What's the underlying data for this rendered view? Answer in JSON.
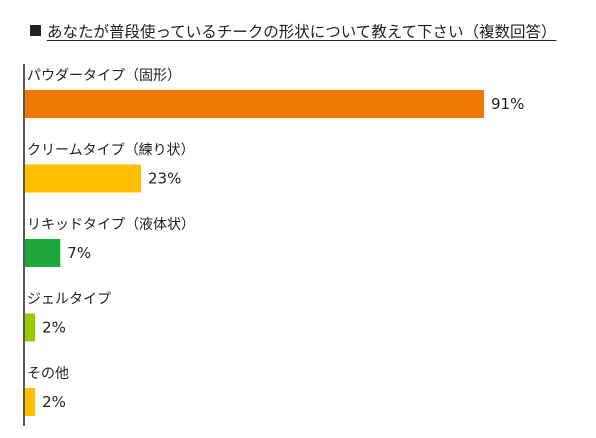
{
  "title": "あなたが普段使っているチークの形状について教えて下さい（複数回答）",
  "chart_data": {
    "type": "bar",
    "orientation": "horizontal",
    "title": "あなたが普段使っているチークの形状について教えて下さい（複数回答）",
    "categories": [
      "パウダータイプ（固形）",
      "クリームタイプ（練り状）",
      "リキッドタイプ（液体状）",
      "ジェルタイプ",
      "その他"
    ],
    "values": [
      91,
      23,
      7,
      2,
      2
    ],
    "value_labels": [
      "91%",
      "23%",
      "7%",
      "2%",
      "2%"
    ],
    "unit": "%",
    "colors": [
      "#EE7800",
      "#FFC000",
      "#1FA83A",
      "#99CC00",
      "#FFC000"
    ],
    "xlim": [
      0,
      100
    ],
    "grid": false,
    "legend": "none"
  }
}
